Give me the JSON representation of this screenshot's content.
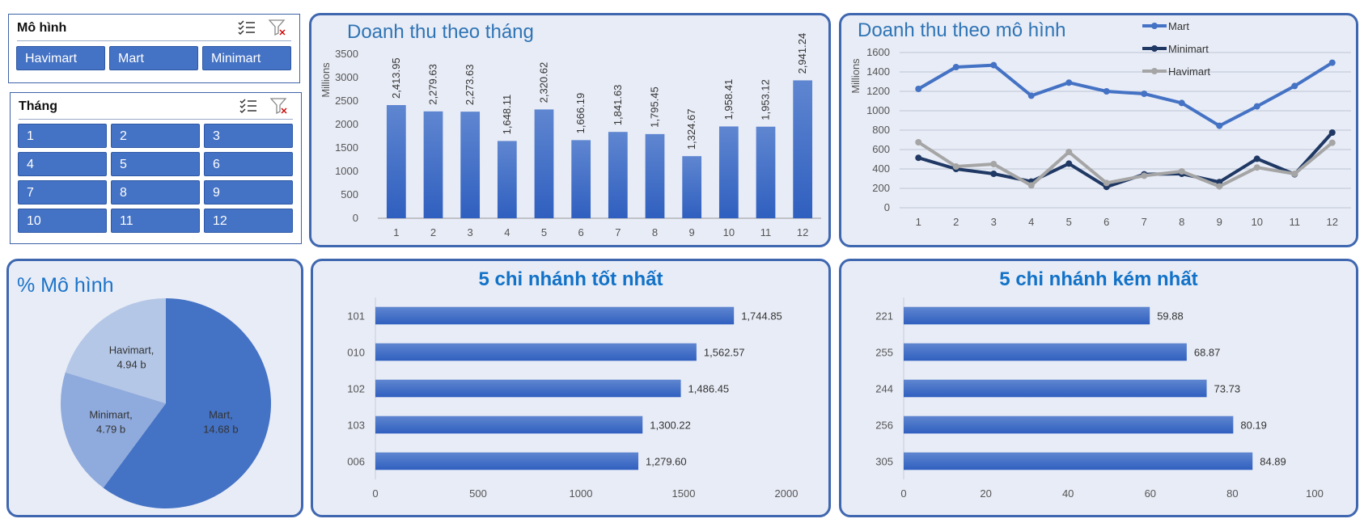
{
  "slicer_model": {
    "title": "Mô hình",
    "items": [
      "Havimart",
      "Mart",
      "Minimart"
    ]
  },
  "slicer_month": {
    "title": "Tháng",
    "items": [
      "1",
      "2",
      "3",
      "4",
      "5",
      "6",
      "7",
      "8",
      "9",
      "10",
      "11",
      "12"
    ]
  },
  "colors": {
    "accent": "#4472c4",
    "border": "#3f67b0",
    "panel_bg": "#e8ecf6",
    "title": "#2e74b5"
  },
  "chart_data": [
    {
      "id": "monthly",
      "type": "bar",
      "title": "Doanh thu theo tháng",
      "ylabel": "Millions",
      "categories": [
        "1",
        "2",
        "3",
        "4",
        "5",
        "6",
        "7",
        "8",
        "9",
        "10",
        "11",
        "12"
      ],
      "values": [
        2413.95,
        2279.63,
        2273.63,
        1648.11,
        2320.62,
        1666.19,
        1841.63,
        1795.45,
        1324.67,
        1958.41,
        1953.12,
        2941.24
      ],
      "value_labels": [
        "2,413.95",
        "2,279.63",
        "2,273.63",
        "1,648.11",
        "2,320.62",
        "1,666.19",
        "1,841.63",
        "1,795.45",
        "1,324.67",
        "1,958.41",
        "1,953.12",
        "2,941.24"
      ],
      "yticks": [
        "0",
        "500",
        "1000",
        "1500",
        "2000",
        "2500",
        "3000",
        "3500"
      ],
      "ylim": [
        0,
        3500
      ],
      "grid": false
    },
    {
      "id": "model",
      "type": "line",
      "title": "Doanh thu theo mô hình",
      "ylabel": "Millions",
      "categories": [
        "1",
        "2",
        "3",
        "4",
        "5",
        "6",
        "7",
        "8",
        "9",
        "10",
        "11",
        "12"
      ],
      "yticks": [
        "0",
        "200",
        "400",
        "600",
        "800",
        "1000",
        "1200",
        "1400",
        "1600"
      ],
      "ylim": [
        0,
        1600
      ],
      "legend": "top-right",
      "series": [
        {
          "name": "Mart",
          "color": "#4472c4",
          "values": [
            1225,
            1450,
            1470,
            1155,
            1290,
            1200,
            1175,
            1080,
            845,
            1045,
            1255,
            1495
          ]
        },
        {
          "name": "Minimart",
          "color": "#1f3864",
          "values": [
            515,
            400,
            350,
            270,
            455,
            215,
            345,
            350,
            265,
            505,
            345,
            775
          ]
        },
        {
          "name": "Havimart",
          "color": "#a5a5a5",
          "values": [
            675,
            425,
            450,
            230,
            575,
            255,
            330,
            375,
            220,
            415,
            350,
            670
          ]
        }
      ]
    },
    {
      "id": "share",
      "type": "pie",
      "title": "% Mô hình",
      "slices": [
        {
          "name": "Mart",
          "value": 14.68,
          "label": "14.68 b",
          "color": "#4472c4"
        },
        {
          "name": "Minimart",
          "value": 4.79,
          "label": "4.79 b",
          "color": "#8faadc"
        },
        {
          "name": "Havimart",
          "value": 4.94,
          "label": "4.94 b",
          "color": "#b4c7e7"
        }
      ]
    },
    {
      "id": "best",
      "type": "bar",
      "orientation": "horizontal",
      "title": "5 chi nhánh tốt nhất",
      "categories": [
        "101",
        "010",
        "102",
        "103",
        "006"
      ],
      "values": [
        1744.85,
        1562.57,
        1486.45,
        1300.22,
        1279.6
      ],
      "value_labels": [
        "1,744.85",
        "1,562.57",
        "1,486.45",
        "1,300.22",
        "1,279.60"
      ],
      "xticks": [
        "0",
        "500",
        "1000",
        "1500",
        "2000"
      ],
      "xlim": [
        0,
        2000
      ]
    },
    {
      "id": "worst",
      "type": "bar",
      "orientation": "horizontal",
      "title": "5 chi nhánh kém nhất",
      "categories": [
        "221",
        "255",
        "244",
        "256",
        "305"
      ],
      "values": [
        59.88,
        68.87,
        73.73,
        80.19,
        84.89
      ],
      "value_labels": [
        "59.88",
        "68.87",
        "73.73",
        "80.19",
        "84.89"
      ],
      "xticks": [
        "0",
        "20",
        "40",
        "60",
        "80",
        "100"
      ],
      "xlim": [
        0,
        100
      ]
    }
  ]
}
